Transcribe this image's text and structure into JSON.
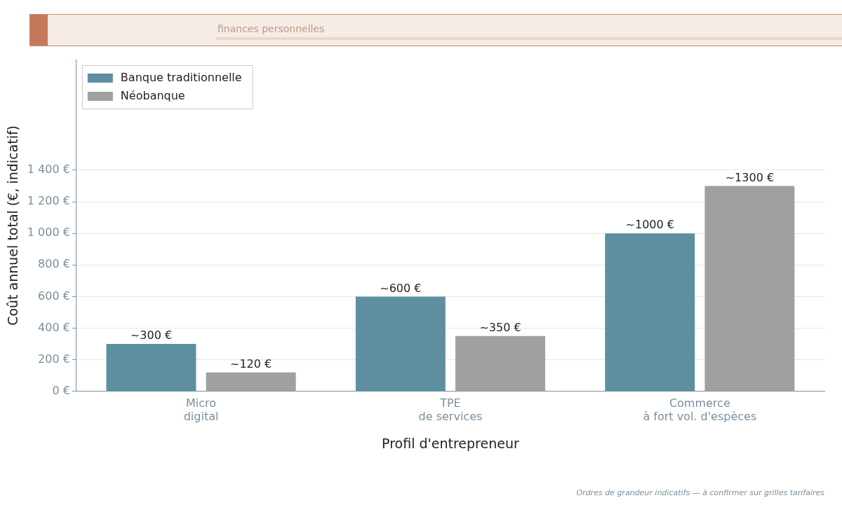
{
  "chart_data": {
    "type": "bar",
    "subtitle": "finances personnelles",
    "xlabel": "Profil d'entrepreneur",
    "ylabel": "Coût annuel total (€, indicatif)",
    "categories": [
      "Micro\ndigital",
      "TPE\nde services",
      "Commerce\nà fort vol. d'espèces"
    ],
    "series": [
      {
        "name": "Banque traditionnelle",
        "color": "#5d8fa1",
        "values": [
          300,
          600,
          1000
        ],
        "value_labels": [
          "~300 €",
          "~600 €",
          "~1000 €"
        ]
      },
      {
        "name": "Néobanque",
        "color": "#a0a0a0",
        "values": [
          120,
          350,
          1300
        ],
        "value_labels": [
          "~120 €",
          "~350 €",
          "~1300 €"
        ]
      }
    ],
    "ylim": [
      0,
      2100
    ],
    "yticks": [
      {
        "value": 0,
        "label": "0 €"
      },
      {
        "value": 200,
        "label": "200 €"
      },
      {
        "value": 400,
        "label": "400 €"
      },
      {
        "value": 600,
        "label": "600 €"
      },
      {
        "value": 800,
        "label": "800 €"
      },
      {
        "value": 1000,
        "label": "1 000 €"
      },
      {
        "value": 1200,
        "label": "1 200 €"
      },
      {
        "value": 1400,
        "label": "1 400 €"
      }
    ],
    "grid": "y",
    "legend": "top left",
    "annotations": [
      "Ordres de grandeur indicatifs — à confirmer sur grilles tarifaires"
    ]
  }
}
